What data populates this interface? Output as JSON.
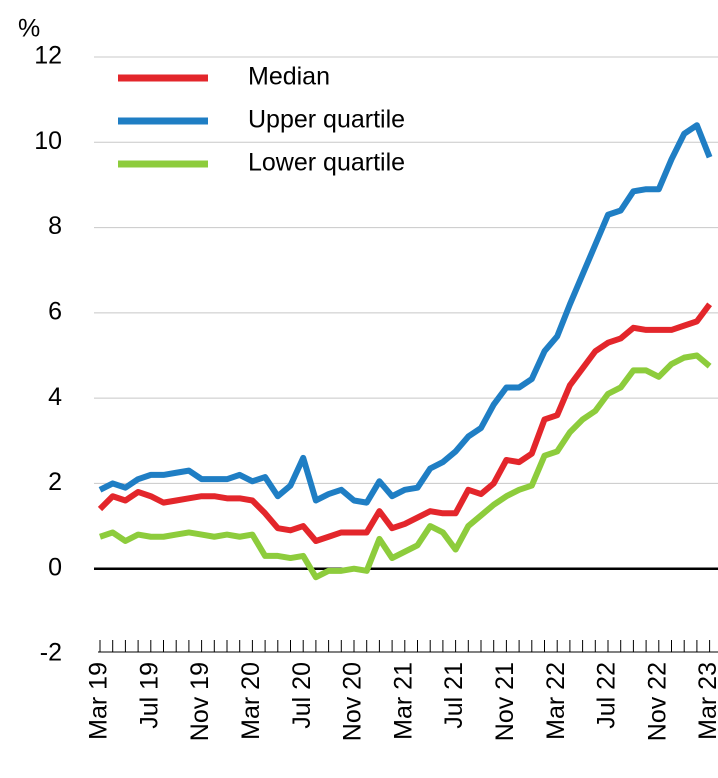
{
  "chart_data": {
    "type": "line",
    "y_label": "%",
    "categories": [
      "Mar 19",
      null,
      null,
      null,
      "Jul 19",
      null,
      null,
      null,
      "Nov 19",
      null,
      null,
      null,
      "Mar 20",
      null,
      null,
      null,
      "Jul 20",
      null,
      null,
      null,
      "Nov 20",
      null,
      null,
      null,
      "Mar 21",
      null,
      null,
      null,
      "Jul 21",
      null,
      null,
      null,
      "Nov 21",
      null,
      null,
      null,
      "Mar 22",
      null,
      null,
      null,
      "Jul 22",
      null,
      null,
      null,
      "Nov 22",
      null,
      null,
      null,
      "Mar 23"
    ],
    "series": [
      {
        "name": "Median",
        "color": "#e3262b",
        "values": [
          1.4,
          1.7,
          1.6,
          1.8,
          1.7,
          1.55,
          1.6,
          1.65,
          1.7,
          1.7,
          1.65,
          1.65,
          1.6,
          1.3,
          0.95,
          0.9,
          1.0,
          0.65,
          0.75,
          0.85,
          0.85,
          0.85,
          1.35,
          0.95,
          1.05,
          1.2,
          1.35,
          1.3,
          1.3,
          1.85,
          1.75,
          2.0,
          2.55,
          2.5,
          2.7,
          3.5,
          3.6,
          4.3,
          4.7,
          5.1,
          5.3,
          5.4,
          5.65,
          5.6,
          5.6,
          5.6,
          5.7,
          5.8,
          6.2
        ]
      },
      {
        "name": "Upper quartile",
        "color": "#1f7ec4",
        "values": [
          1.85,
          2.0,
          1.9,
          2.1,
          2.2,
          2.2,
          2.25,
          2.3,
          2.1,
          2.1,
          2.1,
          2.2,
          2.05,
          2.15,
          1.7,
          1.95,
          2.6,
          1.6,
          1.75,
          1.85,
          1.6,
          1.55,
          2.05,
          1.7,
          1.85,
          1.9,
          2.35,
          2.5,
          2.75,
          3.1,
          3.3,
          3.85,
          4.25,
          4.25,
          4.45,
          5.1,
          5.45,
          6.2,
          6.9,
          7.6,
          8.3,
          8.4,
          8.85,
          8.9,
          8.9,
          9.6,
          10.2,
          10.4,
          9.65
        ]
      },
      {
        "name": "Lower quartile",
        "color": "#8dcc3c",
        "values": [
          0.75,
          0.85,
          0.65,
          0.8,
          0.75,
          0.75,
          0.8,
          0.85,
          0.8,
          0.75,
          0.8,
          0.75,
          0.8,
          0.3,
          0.3,
          0.25,
          0.3,
          -0.2,
          -0.05,
          -0.05,
          0.0,
          -0.05,
          0.7,
          0.25,
          0.4,
          0.55,
          1.0,
          0.85,
          0.45,
          1.0,
          1.25,
          1.5,
          1.7,
          1.85,
          1.95,
          2.65,
          2.75,
          3.2,
          3.5,
          3.7,
          4.1,
          4.25,
          4.65,
          4.65,
          4.5,
          4.8,
          4.95,
          5.0,
          4.75
        ]
      }
    ],
    "ylim": [
      -2,
      12
    ],
    "yticks": [
      -2,
      0,
      2,
      4,
      6,
      8,
      10,
      12
    ],
    "grid": true,
    "legend": "upper-left"
  }
}
